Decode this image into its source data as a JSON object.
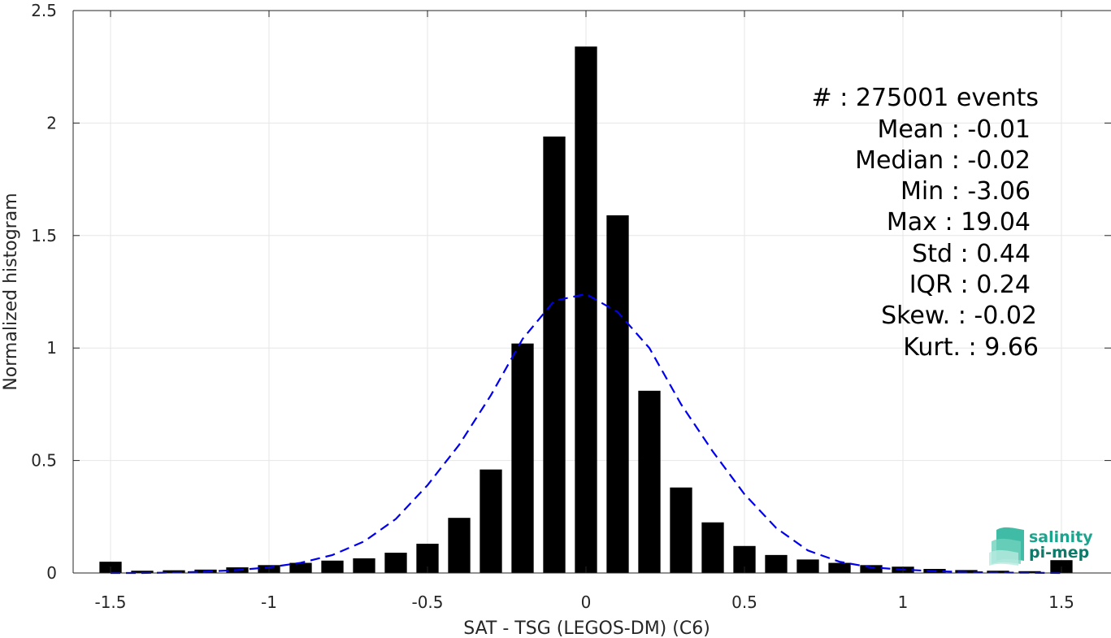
{
  "chart_data": {
    "type": "bar",
    "xlabel": "SAT - TSG (LEGOS-DM) (C6)",
    "ylabel": "Normalized histogram",
    "xlim": [
      -1.6,
      1.6
    ],
    "ylim": [
      0,
      2.5
    ],
    "grid": true,
    "xticks": [
      -1.5,
      -1,
      -0.5,
      0,
      0.5,
      1,
      1.5
    ],
    "xtick_labels": [
      "-1.5",
      "-1",
      "-0.5",
      "0",
      "0.5",
      "1",
      "1.5"
    ],
    "yticks": [
      0,
      0.5,
      1,
      1.5,
      2,
      2.5
    ],
    "ytick_labels": [
      "0",
      "0.5",
      "1",
      "1.5",
      "2",
      "2.5"
    ],
    "bar_width": 0.07,
    "x": [
      -1.5,
      -1.4,
      -1.3,
      -1.2,
      -1.1,
      -1.0,
      -0.9,
      -0.8,
      -0.7,
      -0.6,
      -0.5,
      -0.4,
      -0.3,
      -0.2,
      -0.1,
      0.0,
      0.1,
      0.2,
      0.3,
      0.4,
      0.5,
      0.6,
      0.7,
      0.8,
      0.9,
      1.0,
      1.1,
      1.2,
      1.3,
      1.4,
      1.5
    ],
    "values": [
      0.05,
      0.01,
      0.012,
      0.015,
      0.025,
      0.035,
      0.045,
      0.055,
      0.065,
      0.09,
      0.13,
      0.245,
      0.46,
      1.02,
      1.94,
      2.34,
      1.59,
      0.81,
      0.38,
      0.225,
      0.12,
      0.08,
      0.06,
      0.045,
      0.035,
      0.028,
      0.018,
      0.013,
      0.01,
      0.008,
      0.057
    ],
    "bar_color": "#000000",
    "fit_curve": {
      "style": "dashed",
      "color": "#0000ee",
      "x": [
        -1.5,
        -1.4,
        -1.3,
        -1.2,
        -1.1,
        -1.0,
        -0.9,
        -0.8,
        -0.7,
        -0.6,
        -0.5,
        -0.4,
        -0.3,
        -0.2,
        -0.1,
        0.0,
        0.1,
        0.2,
        0.3,
        0.4,
        0.5,
        0.6,
        0.7,
        0.8,
        0.9,
        1.0,
        1.1,
        1.2,
        1.3,
        1.4,
        1.5
      ],
      "y": [
        0.0,
        0.0,
        0.002,
        0.006,
        0.013,
        0.025,
        0.045,
        0.08,
        0.14,
        0.24,
        0.39,
        0.57,
        0.79,
        1.04,
        1.21,
        1.24,
        1.16,
        1.0,
        0.75,
        0.54,
        0.35,
        0.2,
        0.1,
        0.05,
        0.025,
        0.015,
        0.008,
        0.004,
        0.002,
        0.001,
        0.0
      ]
    }
  },
  "stats": [
    {
      "label": "#  : 275001 events"
    },
    {
      "label": "Mean : -0.01"
    },
    {
      "label": "Median : -0.02"
    },
    {
      "label": "Min : -3.06"
    },
    {
      "label": "Max : 19.04"
    },
    {
      "label": "Std : 0.44"
    },
    {
      "label": "IQR : 0.24"
    },
    {
      "label": "Skew. : -0.02"
    },
    {
      "label": "Kurt. : 9.66"
    }
  ],
  "logo": {
    "line1": "salinity",
    "line2": "pi-mep",
    "color1": "#1aa58e",
    "color2": "#0e7a6a"
  }
}
